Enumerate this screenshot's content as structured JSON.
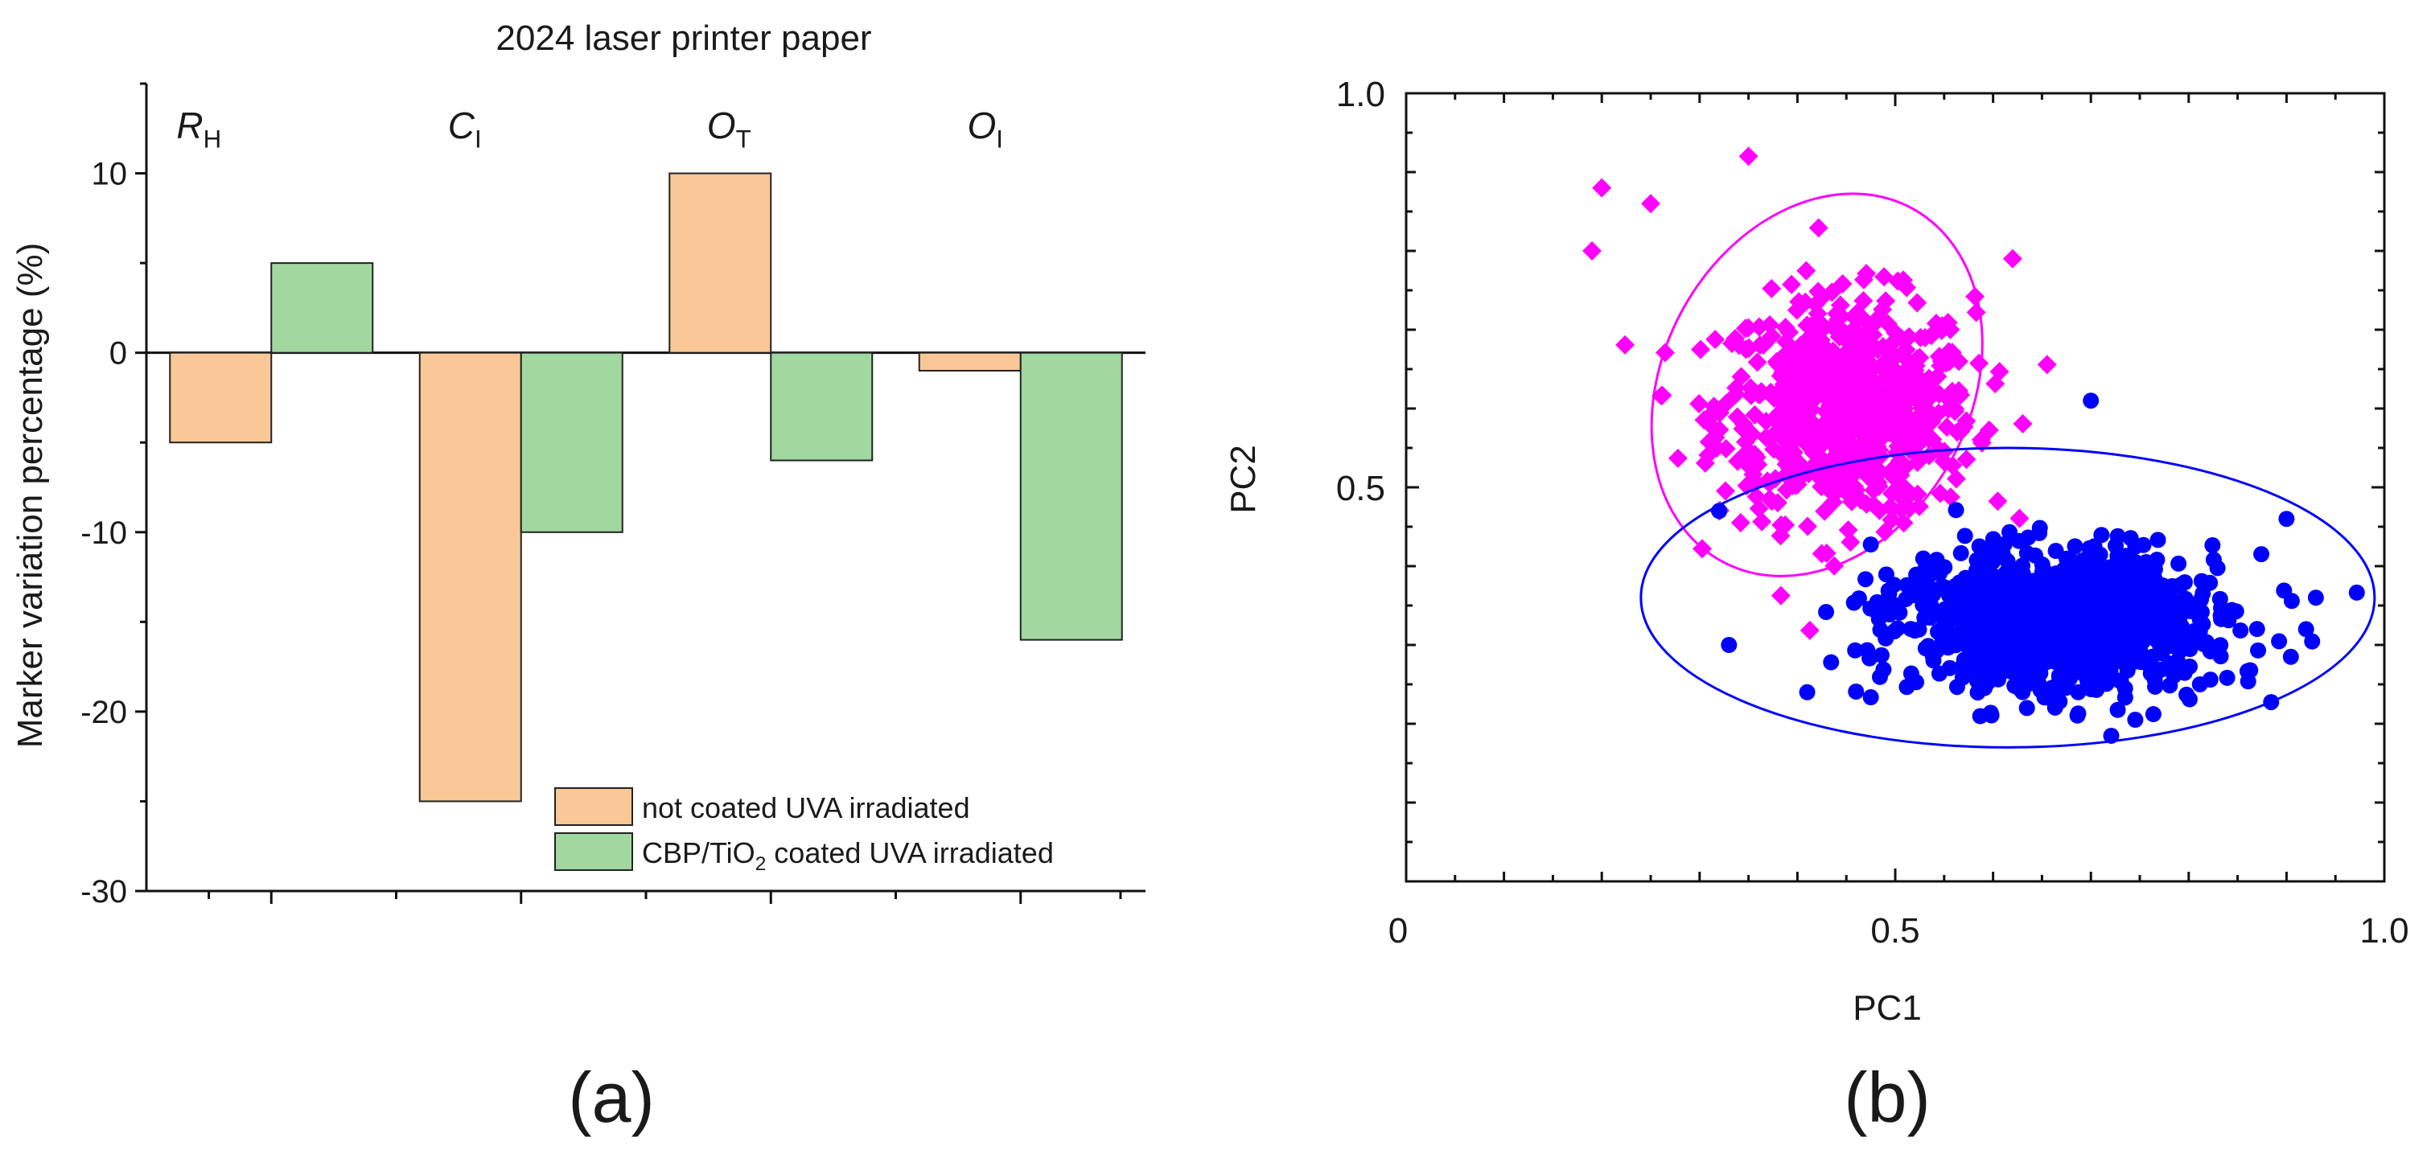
{
  "chart_data": [
    {
      "type": "bar",
      "panel_label": "(a)",
      "title": "2024 laser printer paper",
      "ylabel": "Marker variation percentage (%)",
      "xlabel": "",
      "ylim": [
        -30,
        15
      ],
      "yticks": [
        10,
        0,
        -10,
        -20,
        -30
      ],
      "grid": false,
      "legend_position": "bottom-right",
      "categories": [
        {
          "main": "R",
          "sub": "H"
        },
        {
          "main": "C",
          "sub": "I"
        },
        {
          "main": "O",
          "sub": "T"
        },
        {
          "main": "O",
          "sub": "I"
        }
      ],
      "series": [
        {
          "name": "not coated UVA irradiated",
          "color": "#f9c896",
          "values": [
            -5,
            -25,
            10,
            -1
          ]
        },
        {
          "name_main": "CBP/TiO",
          "name_sub": "2",
          "name_rest": " coated UVA irradiated",
          "color": "#a0d8a0",
          "values": [
            5,
            -10,
            -6,
            -16
          ]
        }
      ]
    },
    {
      "type": "scatter",
      "panel_label": "(b)",
      "xlabel": "PC1",
      "ylabel": "PC2",
      "xlim": [
        0,
        1.0
      ],
      "ylim": [
        0,
        1.0
      ],
      "xticks": [
        "0",
        "0.5",
        "1.0"
      ],
      "yticks": [
        "0.5",
        "1.0"
      ],
      "grid": false,
      "series": [
        {
          "marker": "diamond",
          "color": "#ff00ff",
          "center": [
            0.45,
            0.6
          ],
          "spread": [
            0.065,
            0.07
          ],
          "count": 700,
          "ellipse": {
            "cx": 0.42,
            "cy": 0.63,
            "rx": 0.205,
            "ry": 0.315,
            "angle_deg": 118
          },
          "outliers": [
            [
              0.35,
              0.92
            ],
            [
              0.2,
              0.88
            ],
            [
              0.57,
              0.33
            ],
            [
              0.62,
              0.79
            ],
            [
              0.32,
              0.47
            ],
            [
              0.25,
              0.86
            ],
            [
              0.19,
              0.8
            ]
          ]
        },
        {
          "marker": "circle",
          "color": "#0000ff",
          "center": [
            0.66,
            0.33
          ],
          "spread": [
            0.075,
            0.045
          ],
          "count": 1100,
          "ellipse": {
            "cx": 0.615,
            "cy": 0.36,
            "rx": 0.375,
            "ry": 0.19,
            "angle_deg": 0
          },
          "outliers": [
            [
              0.7,
              0.61
            ],
            [
              0.33,
              0.3
            ],
            [
              0.9,
              0.46
            ],
            [
              0.92,
              0.32
            ],
            [
              0.32,
              0.47
            ],
            [
              0.93,
              0.36
            ],
            [
              0.41,
              0.24
            ]
          ]
        }
      ]
    }
  ]
}
